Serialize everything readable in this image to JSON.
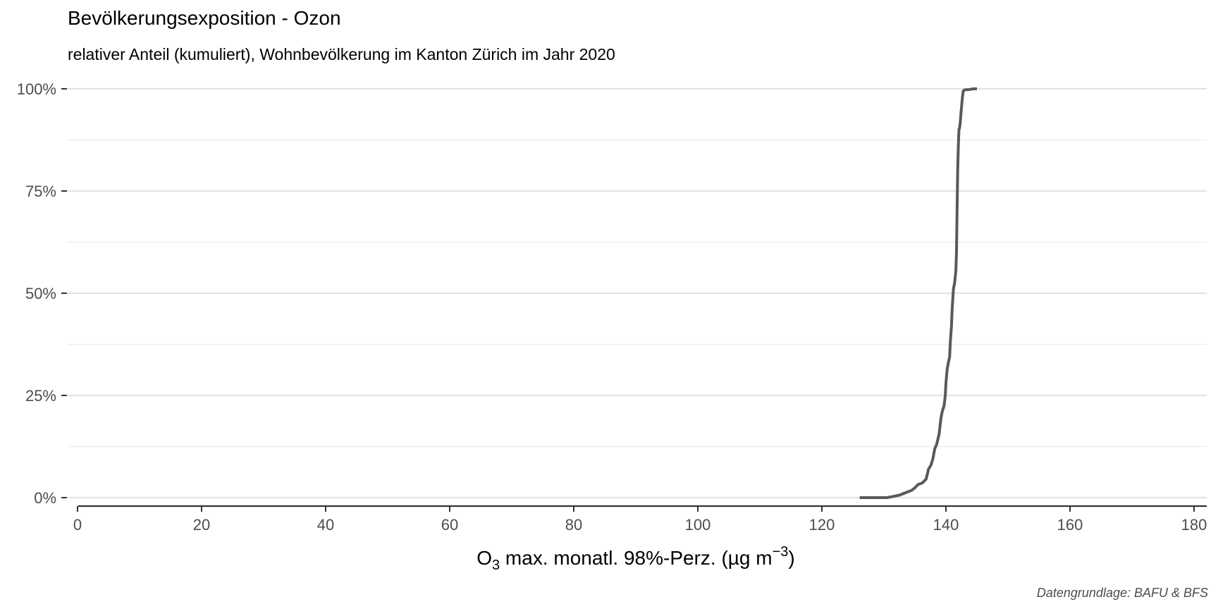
{
  "chart_data": {
    "type": "line",
    "title": "Bevölkerungsexposition - Ozon",
    "subtitle": "relativer Anteil (kumuliert), Wohnbevölkerung im Kanton Zürich im Jahr 2020",
    "xlabel": {
      "prefix": "O",
      "subscript": "3",
      "middle": " max. monatl. 98%-Perz. (µg m",
      "superscript": "−3",
      "suffix": ")"
    },
    "ylabel": "",
    "caption": "Datengrundlage: BAFU & BFS",
    "xlim": [
      0,
      180
    ],
    "ylim": [
      0,
      1
    ],
    "x_ticks": [
      {
        "value": 0,
        "label": "0"
      },
      {
        "value": 20,
        "label": "20"
      },
      {
        "value": 40,
        "label": "40"
      },
      {
        "value": 60,
        "label": "60"
      },
      {
        "value": 80,
        "label": "80"
      },
      {
        "value": 100,
        "label": "100"
      },
      {
        "value": 120,
        "label": "120"
      },
      {
        "value": 140,
        "label": "140"
      },
      {
        "value": 160,
        "label": "160"
      },
      {
        "value": 180,
        "label": "180"
      }
    ],
    "y_ticks": [
      {
        "value": 0,
        "label": "0%"
      },
      {
        "value": 0.25,
        "label": "25%"
      },
      {
        "value": 0.5,
        "label": "50%"
      },
      {
        "value": 0.75,
        "label": "75%"
      },
      {
        "value": 1,
        "label": "100%"
      }
    ],
    "y_minor": [
      0.125,
      0.375,
      0.625,
      0.875
    ],
    "grid": true,
    "line_color": "#595959",
    "series": [
      {
        "x": [
          126.1,
          130.5,
          131.5,
          132.5,
          133.5,
          134.5,
          135.0,
          135.5,
          136.2,
          136.8,
          137.2,
          137.6,
          137.9,
          138.2,
          138.5,
          138.9,
          139.2,
          139.4,
          139.7,
          139.9,
          140.0,
          140.2,
          140.4,
          140.6,
          140.7,
          140.9,
          141.0,
          141.2,
          141.4,
          141.6,
          141.7,
          141.8,
          141.9,
          142.0,
          142.1,
          142.2,
          142.3,
          142.4,
          142.6,
          142.7,
          142.8,
          143.0,
          143.2,
          143.6,
          144.0,
          144.5,
          145.0
        ],
        "y": [
          0.0,
          0.0,
          0.003,
          0.006,
          0.012,
          0.018,
          0.024,
          0.032,
          0.036,
          0.045,
          0.07,
          0.08,
          0.095,
          0.12,
          0.13,
          0.155,
          0.195,
          0.21,
          0.225,
          0.25,
          0.28,
          0.315,
          0.33,
          0.345,
          0.38,
          0.42,
          0.46,
          0.51,
          0.525,
          0.555,
          0.6,
          0.7,
          0.8,
          0.86,
          0.9,
          0.905,
          0.915,
          0.935,
          0.97,
          0.985,
          0.995,
          0.997,
          0.998,
          0.998,
          0.999,
          1.0,
          1.0
        ]
      }
    ]
  }
}
